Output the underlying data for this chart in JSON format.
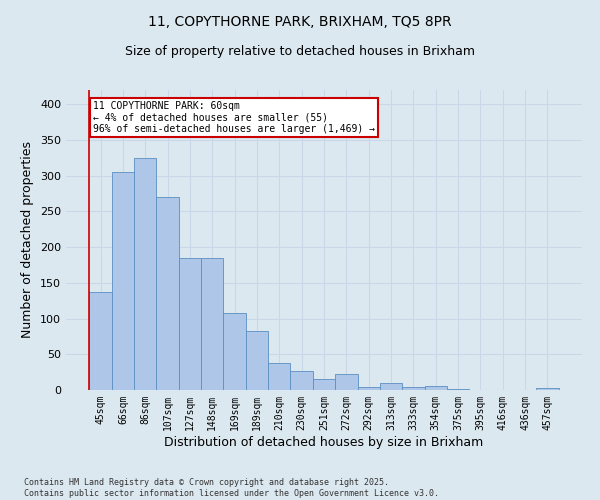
{
  "title_line1": "11, COPYTHORNE PARK, BRIXHAM, TQ5 8PR",
  "title_line2": "Size of property relative to detached houses in Brixham",
  "xlabel": "Distribution of detached houses by size in Brixham",
  "ylabel": "Number of detached properties",
  "footnote": "Contains HM Land Registry data © Crown copyright and database right 2025.\nContains public sector information licensed under the Open Government Licence v3.0.",
  "bar_labels": [
    "45sqm",
    "66sqm",
    "86sqm",
    "107sqm",
    "127sqm",
    "148sqm",
    "169sqm",
    "189sqm",
    "210sqm",
    "230sqm",
    "251sqm",
    "272sqm",
    "292sqm",
    "313sqm",
    "333sqm",
    "354sqm",
    "375sqm",
    "395sqm",
    "416sqm",
    "436sqm",
    "457sqm"
  ],
  "bar_values": [
    137,
    305,
    325,
    270,
    185,
    185,
    108,
    83,
    38,
    27,
    16,
    22,
    4,
    10,
    4,
    5,
    1,
    0,
    0,
    0,
    3
  ],
  "bar_color": "#aec6e8",
  "bar_edge_color": "#5a8fc2",
  "annotation_title": "11 COPYTHORNE PARK: 60sqm",
  "annotation_line2": "← 4% of detached houses are smaller (55)",
  "annotation_line3": "96% of semi-detached houses are larger (1,469) →",
  "annotation_box_color": "#ffffff",
  "annotation_border_color": "#cc0000",
  "vline_color": "#cc0000",
  "vline_x": -0.5,
  "ylim": [
    0,
    420
  ],
  "yticks": [
    0,
    50,
    100,
    150,
    200,
    250,
    300,
    350,
    400
  ],
  "grid_color": "#c8d8e8",
  "bg_color": "#dce8f0"
}
